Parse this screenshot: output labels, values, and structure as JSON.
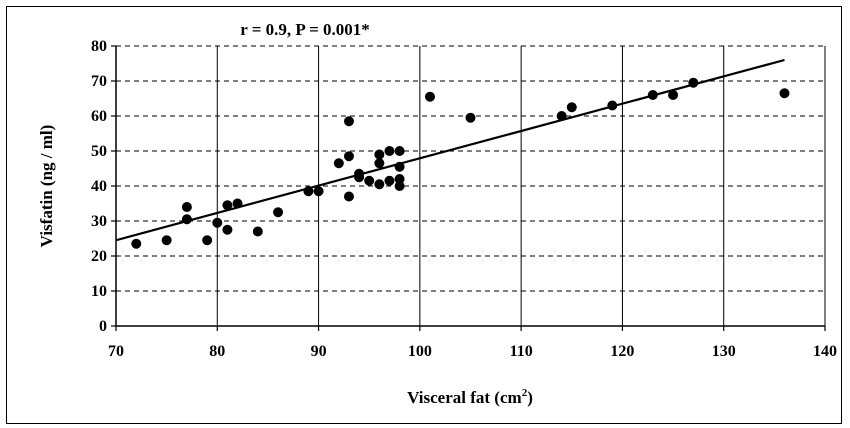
{
  "chart_data": {
    "type": "scatter",
    "title": "",
    "annotation": "r = 0.9, P = 0.001*",
    "xlabel": "Visceral fat (cm",
    "xlabel_sup": "2",
    "xlabel_end": ")",
    "ylabel": "Visfatin (ng / ml)",
    "xlim": [
      70,
      140
    ],
    "ylim": [
      0,
      80
    ],
    "x_ticks": [
      "70",
      "80",
      "90",
      "100",
      "110",
      "120",
      "130",
      "140"
    ],
    "y_ticks": [
      "0",
      "10",
      "20",
      "30",
      "40",
      "50",
      "60",
      "70",
      "80"
    ],
    "grid": {
      "vertical": "solid",
      "horizontal": "dashed"
    },
    "trendline": {
      "x": [
        70,
        136
      ],
      "y": [
        24.5,
        76
      ]
    },
    "points": [
      {
        "x": 72,
        "y": 23.5
      },
      {
        "x": 75,
        "y": 24.5
      },
      {
        "x": 77,
        "y": 34
      },
      {
        "x": 77,
        "y": 30.5
      },
      {
        "x": 79,
        "y": 24.5
      },
      {
        "x": 80,
        "y": 29.5
      },
      {
        "x": 81,
        "y": 34.5
      },
      {
        "x": 81,
        "y": 27.5
      },
      {
        "x": 82,
        "y": 35
      },
      {
        "x": 84,
        "y": 27
      },
      {
        "x": 86,
        "y": 32.5
      },
      {
        "x": 89,
        "y": 38.5
      },
      {
        "x": 90,
        "y": 38.5
      },
      {
        "x": 92,
        "y": 46.5
      },
      {
        "x": 93,
        "y": 58.5
      },
      {
        "x": 93,
        "y": 48.5
      },
      {
        "x": 93,
        "y": 37
      },
      {
        "x": 94,
        "y": 43.5
      },
      {
        "x": 94,
        "y": 42.5
      },
      {
        "x": 95,
        "y": 41.5
      },
      {
        "x": 96,
        "y": 49
      },
      {
        "x": 96,
        "y": 46.5
      },
      {
        "x": 96,
        "y": 40.5
      },
      {
        "x": 97,
        "y": 50
      },
      {
        "x": 97,
        "y": 41.5
      },
      {
        "x": 98,
        "y": 50
      },
      {
        "x": 98,
        "y": 45.5
      },
      {
        "x": 98,
        "y": 42
      },
      {
        "x": 98,
        "y": 40
      },
      {
        "x": 101,
        "y": 65.5
      },
      {
        "x": 105,
        "y": 59.5
      },
      {
        "x": 114,
        "y": 60
      },
      {
        "x": 115,
        "y": 62.5
      },
      {
        "x": 119,
        "y": 63
      },
      {
        "x": 123,
        "y": 66
      },
      {
        "x": 125,
        "y": 66
      },
      {
        "x": 127,
        "y": 69.5
      },
      {
        "x": 136,
        "y": 66.5
      }
    ]
  }
}
